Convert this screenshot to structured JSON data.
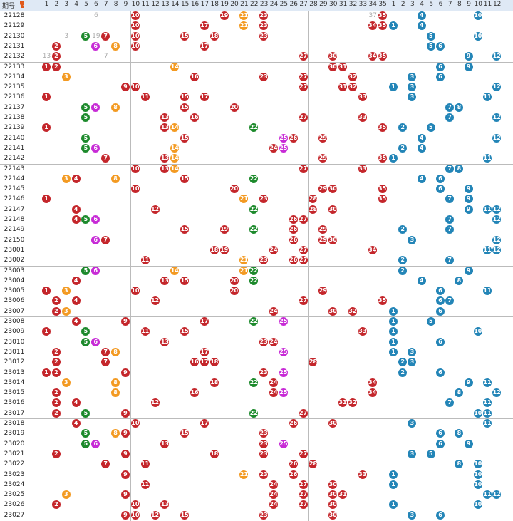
{
  "header": {
    "period_label": "期号",
    "front_numbers": [
      "1",
      "2",
      "3",
      "4",
      "5",
      "6",
      "7",
      "8",
      "9",
      "10",
      "11",
      "12",
      "13",
      "14",
      "15",
      "16",
      "17",
      "18",
      "19",
      "20",
      "21",
      "22",
      "23",
      "24",
      "25",
      "26",
      "27",
      "28",
      "29",
      "30",
      "31",
      "32",
      "33",
      "34",
      "35"
    ],
    "back_numbers": [
      "1",
      "2",
      "3",
      "4",
      "5",
      "6",
      "7",
      "8",
      "9",
      "10",
      "11",
      "12"
    ]
  },
  "rows": [
    {
      "period": "22128",
      "front": [
        10,
        19,
        21,
        23,
        35
      ],
      "back": [
        4,
        10
      ],
      "miss": {
        "6": "6",
        "34": "37"
      }
    },
    {
      "period": "22129",
      "front": [
        10,
        17,
        21,
        23,
        34,
        35
      ],
      "back": [
        1,
        4
      ],
      "miss": {
        "17": "17"
      }
    },
    {
      "period": "22130",
      "front": [
        5,
        7,
        10,
        15,
        18,
        23
      ],
      "back": [
        5,
        10
      ],
      "miss": {
        "6": "19",
        "3": "3"
      }
    },
    {
      "period": "22131",
      "front": [
        2,
        6,
        8,
        10,
        17
      ],
      "back": [
        5,
        6
      ],
      "miss": {}
    },
    {
      "period": "22132",
      "front": [
        2,
        27,
        30,
        34,
        35
      ],
      "back": [
        9,
        12
      ],
      "miss": {
        "1": "13",
        "7": "7"
      }
    },
    {
      "period": "22133",
      "front": [
        1,
        2,
        14,
        30,
        31
      ],
      "back": [
        6,
        9
      ],
      "miss": {}
    },
    {
      "period": "22134",
      "front": [
        3,
        16,
        23,
        27,
        32
      ],
      "back": [
        3,
        6
      ],
      "miss": {}
    },
    {
      "period": "22135",
      "front": [
        9,
        10,
        27,
        31,
        32
      ],
      "back": [
        1,
        3,
        12
      ],
      "miss": {}
    },
    {
      "period": "22136",
      "front": [
        1,
        11,
        15,
        17,
        33
      ],
      "back": [
        3,
        11
      ],
      "miss": {}
    },
    {
      "period": "22137",
      "front": [
        5,
        6,
        8,
        15,
        20
      ],
      "back": [
        7,
        8
      ],
      "miss": {}
    },
    {
      "period": "22138",
      "front": [
        5,
        13,
        16,
        27,
        33
      ],
      "back": [
        7,
        12
      ],
      "miss": {}
    },
    {
      "period": "22139",
      "front": [
        1,
        13,
        14,
        22,
        35
      ],
      "back": [
        2,
        5
      ],
      "miss": {}
    },
    {
      "period": "22140",
      "front": [
        5,
        15,
        25,
        26,
        29
      ],
      "back": [
        4,
        12
      ],
      "miss": {}
    },
    {
      "period": "22141",
      "front": [
        5,
        6,
        14,
        24,
        25
      ],
      "back": [
        2,
        4
      ],
      "miss": {}
    },
    {
      "period": "22142",
      "front": [
        7,
        13,
        14,
        29,
        35
      ],
      "back": [
        1,
        11
      ],
      "miss": {}
    },
    {
      "period": "22143",
      "front": [
        10,
        13,
        14,
        27,
        33
      ],
      "back": [
        7,
        8
      ],
      "miss": {}
    },
    {
      "period": "22144",
      "front": [
        3,
        4,
        8,
        15,
        22
      ],
      "back": [
        4,
        6
      ],
      "miss": {}
    },
    {
      "period": "22145",
      "front": [
        10,
        20,
        29,
        30,
        35
      ],
      "back": [
        6,
        9
      ],
      "miss": {}
    },
    {
      "period": "22146",
      "front": [
        1,
        21,
        23,
        28,
        35
      ],
      "back": [
        7,
        9
      ],
      "miss": {}
    },
    {
      "period": "22147",
      "front": [
        4,
        12,
        22,
        28,
        30
      ],
      "back": [
        9,
        11,
        12
      ],
      "miss": {}
    },
    {
      "period": "22148",
      "front": [
        4,
        5,
        6,
        26,
        27
      ],
      "back": [
        7,
        12
      ],
      "miss": {}
    },
    {
      "period": "22149",
      "front": [
        15,
        19,
        22,
        26,
        29
      ],
      "back": [
        2,
        7
      ],
      "miss": {}
    },
    {
      "period": "22150",
      "front": [
        6,
        7,
        26,
        29,
        30
      ],
      "back": [
        3,
        12
      ],
      "miss": {}
    },
    {
      "period": "23001",
      "front": [
        18,
        19,
        24,
        27,
        34
      ],
      "back": [
        11,
        12
      ],
      "miss": {}
    },
    {
      "period": "23002",
      "front": [
        11,
        21,
        23,
        26,
        27
      ],
      "back": [
        2,
        7
      ],
      "miss": {}
    },
    {
      "period": "23003",
      "front": [
        5,
        6,
        14,
        21,
        22
      ],
      "back": [
        2,
        9
      ],
      "miss": {}
    },
    {
      "period": "23004",
      "front": [
        4,
        13,
        15,
        20,
        22
      ],
      "back": [
        4,
        8
      ],
      "miss": {}
    },
    {
      "period": "23005",
      "front": [
        1,
        3,
        10,
        20,
        29
      ],
      "back": [
        6,
        11
      ],
      "miss": {}
    },
    {
      "period": "23006",
      "front": [
        2,
        4,
        12,
        27,
        35
      ],
      "back": [
        6,
        7
      ],
      "miss": {}
    },
    {
      "period": "23007",
      "front": [
        2,
        3,
        24,
        30,
        32
      ],
      "back": [
        1,
        6
      ],
      "miss": {}
    },
    {
      "period": "23008",
      "front": [
        4,
        9,
        17,
        22,
        25
      ],
      "back": [
        1,
        5
      ],
      "miss": {}
    },
    {
      "period": "23009",
      "front": [
        1,
        5,
        11,
        15,
        33
      ],
      "back": [
        1,
        10
      ],
      "miss": {}
    },
    {
      "period": "23010",
      "front": [
        5,
        6,
        13,
        23,
        24
      ],
      "back": [
        1,
        6
      ],
      "miss": {}
    },
    {
      "period": "23011",
      "front": [
        2,
        7,
        8,
        17,
        25
      ],
      "back": [
        1,
        3
      ],
      "miss": {}
    },
    {
      "period": "23012",
      "front": [
        2,
        7,
        16,
        17,
        18,
        28
      ],
      "back": [
        2,
        3
      ],
      "miss": {}
    },
    {
      "period": "23013",
      "front": [
        1,
        2,
        9,
        23,
        25
      ],
      "back": [
        2,
        6
      ],
      "miss": {}
    },
    {
      "period": "23014",
      "front": [
        3,
        8,
        18,
        22,
        24,
        34
      ],
      "back": [
        9,
        11
      ],
      "miss": {}
    },
    {
      "period": "23015",
      "front": [
        2,
        8,
        16,
        24,
        25,
        34
      ],
      "back": [
        8,
        12
      ],
      "miss": {}
    },
    {
      "period": "23016",
      "front": [
        2,
        4,
        12,
        31,
        32
      ],
      "back": [
        7,
        11
      ],
      "miss": {}
    },
    {
      "period": "23017",
      "front": [
        2,
        5,
        9,
        22,
        27
      ],
      "back": [
        10,
        11
      ],
      "miss": {}
    },
    {
      "period": "23018",
      "front": [
        4,
        10,
        17,
        26,
        30
      ],
      "back": [
        3,
        11
      ],
      "miss": {}
    },
    {
      "period": "23019",
      "front": [
        5,
        8,
        9,
        15,
        23
      ],
      "back": [
        6,
        8
      ],
      "miss": {}
    },
    {
      "period": "23020",
      "front": [
        5,
        6,
        13,
        23,
        25
      ],
      "back": [
        6,
        9
      ],
      "miss": {}
    },
    {
      "period": "23021",
      "front": [
        2,
        9,
        18,
        23,
        27
      ],
      "back": [
        3,
        5
      ],
      "miss": {}
    },
    {
      "period": "23022",
      "front": [
        7,
        11,
        26,
        28
      ],
      "back": [
        8,
        10
      ],
      "miss": {}
    },
    {
      "period": "23023",
      "front": [
        9,
        21,
        23,
        26,
        33
      ],
      "back": [
        1,
        10
      ],
      "miss": {}
    },
    {
      "period": "23024",
      "front": [
        11,
        24,
        27,
        30
      ],
      "back": [
        1,
        10
      ],
      "miss": {}
    },
    {
      "period": "23025",
      "front": [
        3,
        9,
        24,
        27,
        30,
        31
      ],
      "back": [
        11,
        12
      ],
      "miss": {}
    },
    {
      "period": "23026",
      "front": [
        2,
        10,
        13,
        24,
        27,
        30
      ],
      "back": [
        1,
        10
      ],
      "miss": {}
    },
    {
      "period": "23027",
      "front": [
        9,
        10,
        12,
        15,
        23,
        30
      ],
      "back": [
        3,
        6
      ],
      "miss": {}
    }
  ],
  "colors": {
    "red": "#c4262b",
    "orange": "#f39a22",
    "green": "#1d8a2c",
    "purple": "#c72bd6",
    "blue": "#2385b7",
    "miss_text": "#aaaaaa"
  }
}
